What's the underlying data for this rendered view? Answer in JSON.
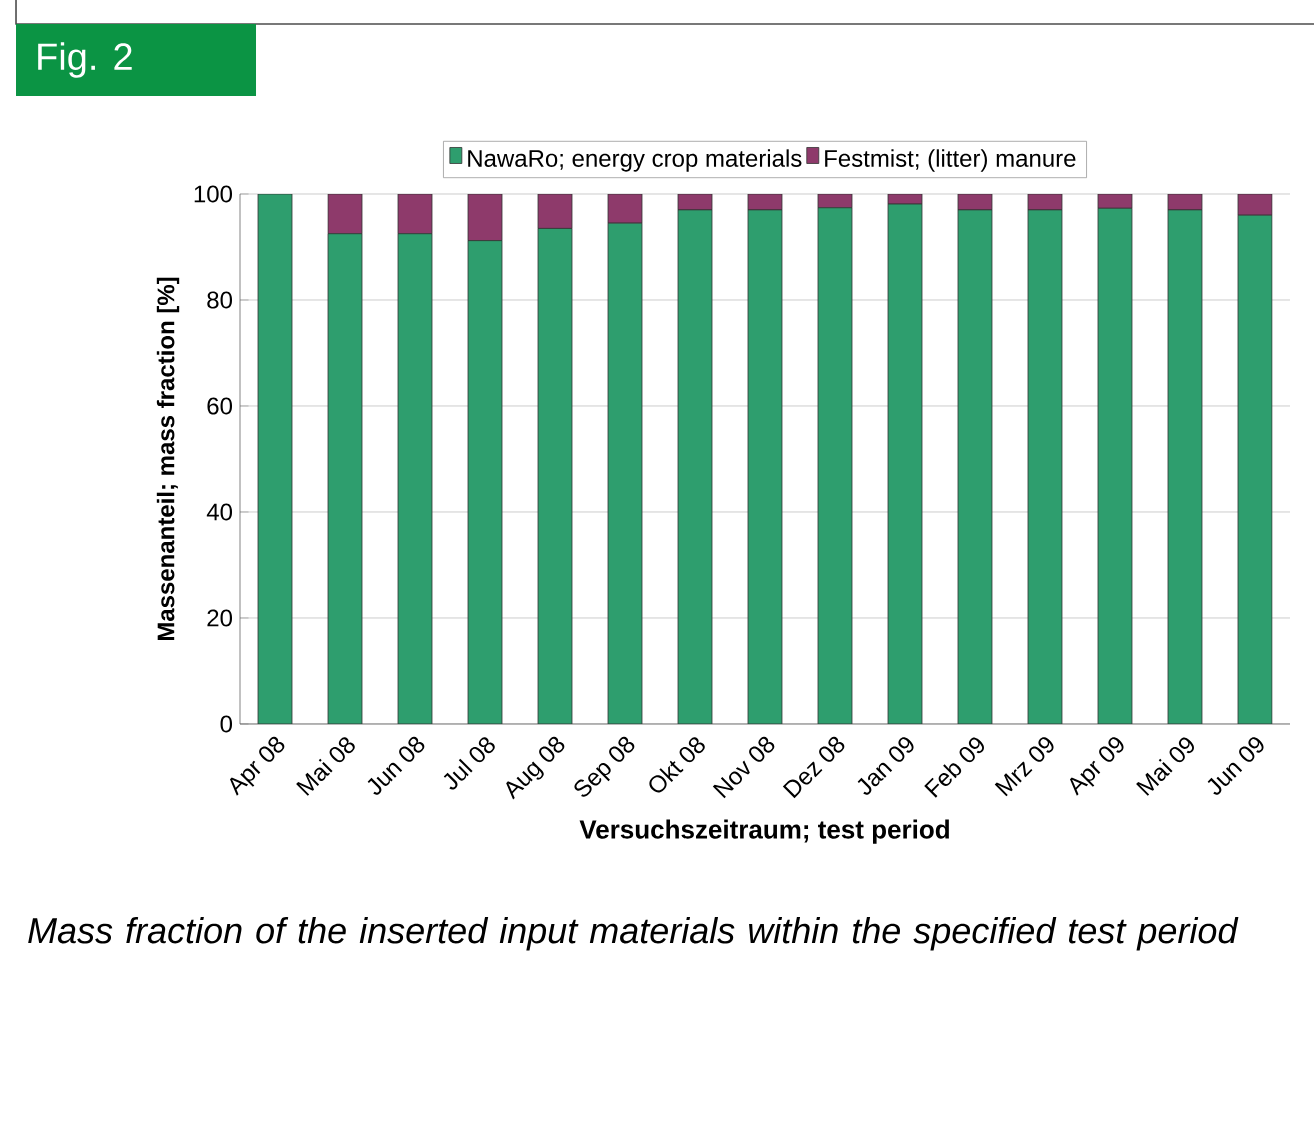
{
  "chart_data": {
    "type": "bar",
    "stacked": true,
    "categories": [
      "Apr 08",
      "Mai 08",
      "Jun 08",
      "Jul 08",
      "Aug 08",
      "Sep 08",
      "Okt 08",
      "Nov 08",
      "Dez 08",
      "Jan 09",
      "Feb 09",
      "Mrz 09",
      "Apr 09",
      "Mai 09",
      "Jun 09"
    ],
    "series": [
      {
        "name": "NawaRo; energy crop materials",
        "color": "#2e9e6e",
        "values": [
          100,
          92.5,
          92.5,
          91.2,
          93.5,
          94.5,
          97,
          97,
          97.4,
          98.1,
          97,
          97,
          97.3,
          97,
          96
        ]
      },
      {
        "name": "Festmist; (litter) manure",
        "color": "#8e3a6b",
        "values": [
          0,
          7.5,
          7.5,
          8.8,
          6.5,
          5.5,
          3,
          3,
          2.6,
          1.9,
          3,
          3,
          2.7,
          3,
          4
        ]
      }
    ],
    "ylim": [
      0,
      100
    ],
    "yticks": [
      0,
      20,
      40,
      60,
      80,
      100
    ],
    "grid": "y",
    "legend": "top",
    "xlabel": "Versuchszeitraum; test period",
    "ylabel": "Massenanteil; mass fraction [%]",
    "annotations": [
      "Fig. 2",
      "Mass fraction of the inserted input materials within the specified test period"
    ]
  }
}
